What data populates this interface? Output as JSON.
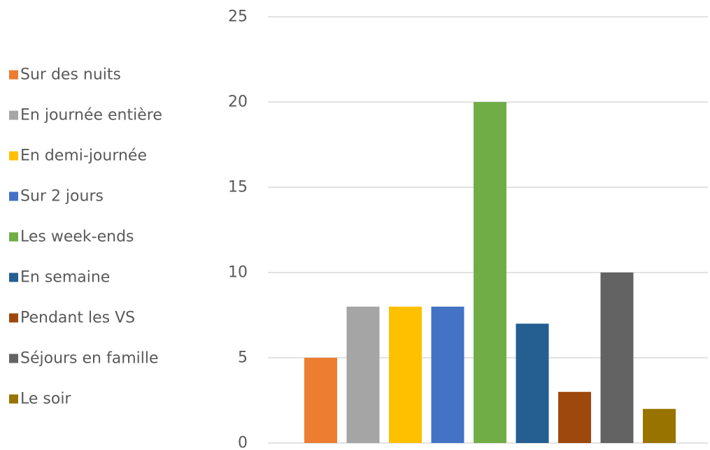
{
  "chart_data": {
    "type": "bar",
    "categories": [
      "Sur des nuits",
      "En journée entière",
      "En demi-journée",
      "Sur 2 jours",
      "Les week-ends",
      "En semaine",
      "Pendant les VS",
      "Séjours en famille",
      "Le soir"
    ],
    "values": [
      5,
      8,
      8,
      8,
      20,
      7,
      3,
      10,
      2
    ],
    "colors": [
      "#ed7d31",
      "#a5a5a5",
      "#ffc000",
      "#4472c4",
      "#70ad47",
      "#255e91",
      "#9e480e",
      "#636363",
      "#997300"
    ],
    "ylim": [
      0,
      25
    ],
    "yticks": [
      0,
      5,
      10,
      15,
      20,
      25
    ],
    "grid": true,
    "legend_position": "left",
    "title": "",
    "xlabel": "",
    "ylabel": ""
  }
}
